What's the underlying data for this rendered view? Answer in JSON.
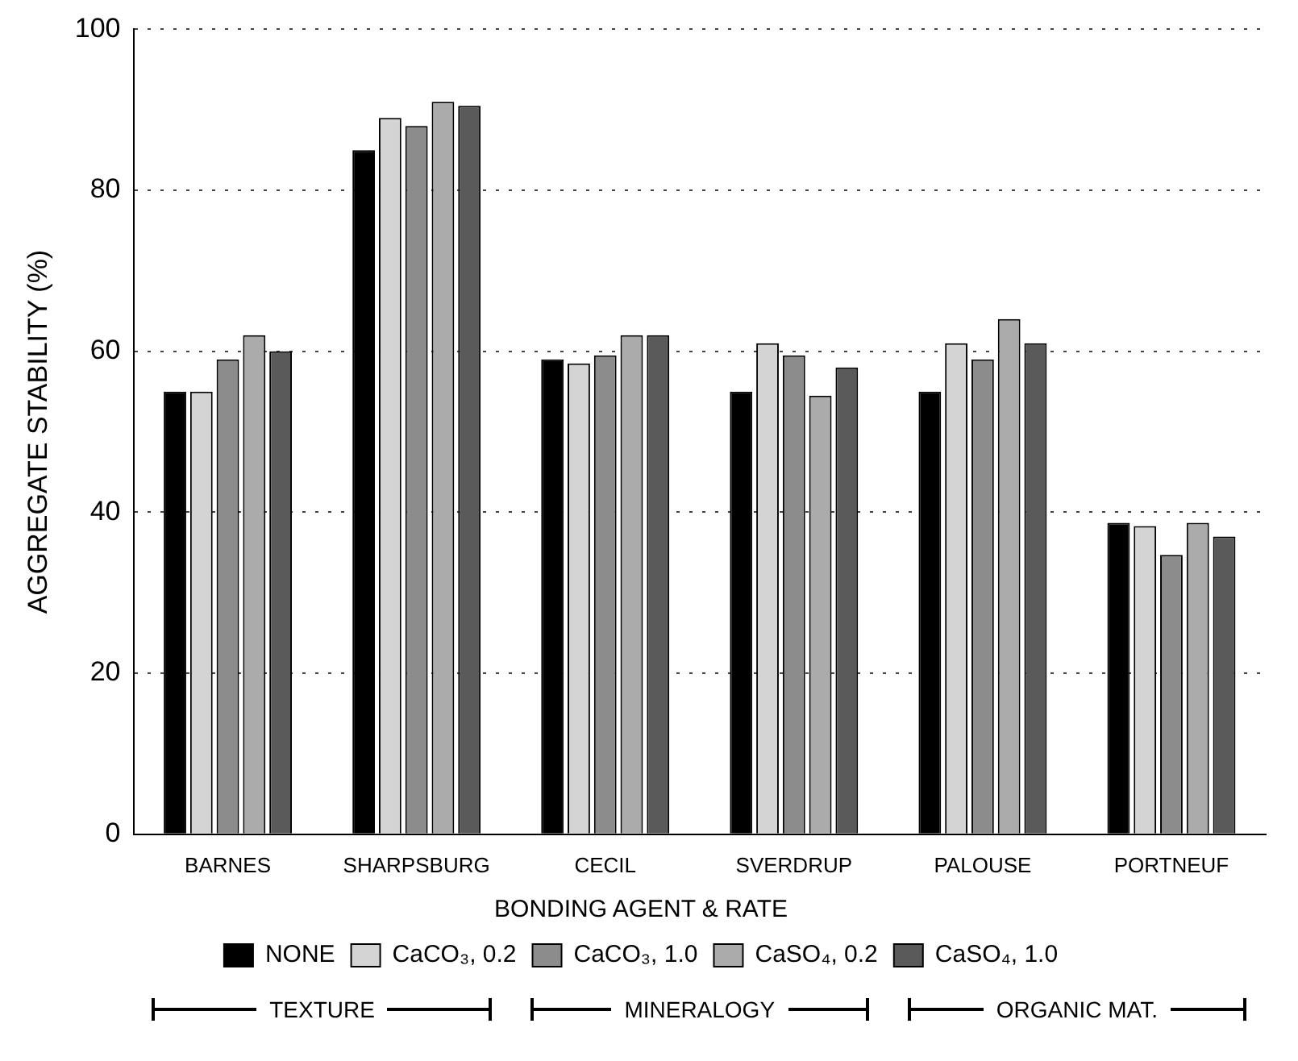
{
  "chart_data": {
    "type": "bar",
    "ylabel": "AGGREGATE STABILITY (%)",
    "legend_title": "BONDING AGENT & RATE",
    "categories": [
      "BARNES",
      "SHARPSBURG",
      "CECIL",
      "SVERDRUP",
      "PALOUSE",
      "PORTNEUF"
    ],
    "series": [
      {
        "name": "NONE",
        "color": "#000000",
        "values": [
          55,
          85,
          59,
          55,
          55,
          38.7
        ]
      },
      {
        "name": "CaCO₃, 0.2",
        "color": "#d4d4d4",
        "values": [
          55,
          89,
          58.5,
          61,
          61,
          38.3
        ]
      },
      {
        "name": "CaCO₃, 1.0",
        "color": "#8c8c8c",
        "values": [
          59,
          88,
          59.5,
          59.5,
          59,
          34.7
        ]
      },
      {
        "name": "CaSO₄, 0.2",
        "color": "#ababab",
        "values": [
          62,
          91,
          62,
          54.5,
          64,
          38.7
        ]
      },
      {
        "name": "CaSO₄, 1.0",
        "color": "#5a5a5a",
        "values": [
          60,
          90.5,
          62,
          58,
          61,
          37
        ]
      }
    ],
    "ylim": [
      0,
      100
    ],
    "yticks": [
      0,
      20,
      40,
      60,
      80,
      100
    ],
    "grid": "y",
    "legend": "bottom",
    "annotations": [
      "TEXTURE",
      "MINERALOGY",
      "ORGANIC MAT."
    ]
  }
}
